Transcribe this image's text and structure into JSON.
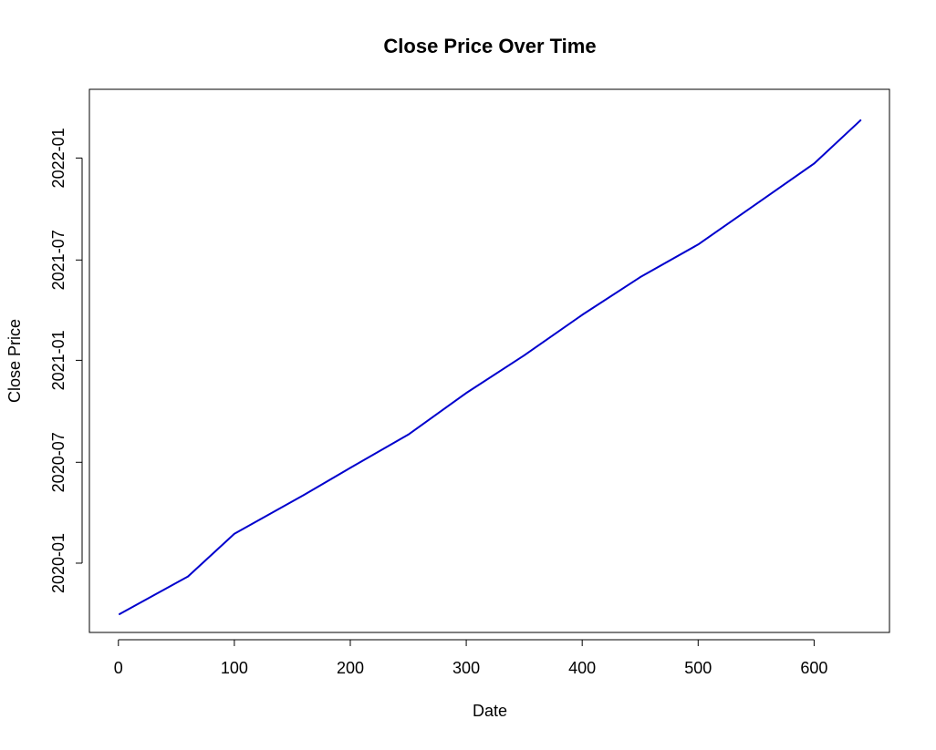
{
  "chart_data": {
    "type": "line",
    "title": "Close Price Over Time",
    "xlabel": "Date",
    "ylabel": "Close Price",
    "xlim": [
      -25,
      665
    ],
    "x_ticks": [
      0,
      100,
      200,
      300,
      400,
      500,
      600
    ],
    "ylim": [
      "2019-08-29",
      "2022-05-05"
    ],
    "y_ticks": [
      {
        "date": "2020-01-01",
        "label": "2020-01"
      },
      {
        "date": "2020-07-01",
        "label": "2020-07"
      },
      {
        "date": "2021-01-01",
        "label": "2021-01"
      },
      {
        "date": "2021-07-01",
        "label": "2021-07"
      },
      {
        "date": "2022-01-01",
        "label": "2022-01"
      }
    ],
    "series": [
      {
        "color": "#0000cd",
        "points": [
          {
            "x": 1,
            "y": "2019-10-01"
          },
          {
            "x": 60,
            "y": "2019-12-08"
          },
          {
            "x": 100,
            "y": "2020-02-23"
          },
          {
            "x": 160,
            "y": "2020-05-03"
          },
          {
            "x": 200,
            "y": "2020-06-21"
          },
          {
            "x": 250,
            "y": "2020-08-20"
          },
          {
            "x": 300,
            "y": "2020-11-03"
          },
          {
            "x": 350,
            "y": "2021-01-10"
          },
          {
            "x": 400,
            "y": "2021-03-24"
          },
          {
            "x": 450,
            "y": "2021-05-31"
          },
          {
            "x": 500,
            "y": "2021-07-29"
          },
          {
            "x": 550,
            "y": "2021-10-10"
          },
          {
            "x": 600,
            "y": "2021-12-22"
          },
          {
            "x": 640,
            "y": "2022-03-10"
          }
        ]
      }
    ],
    "grid": false,
    "legend": "none"
  }
}
